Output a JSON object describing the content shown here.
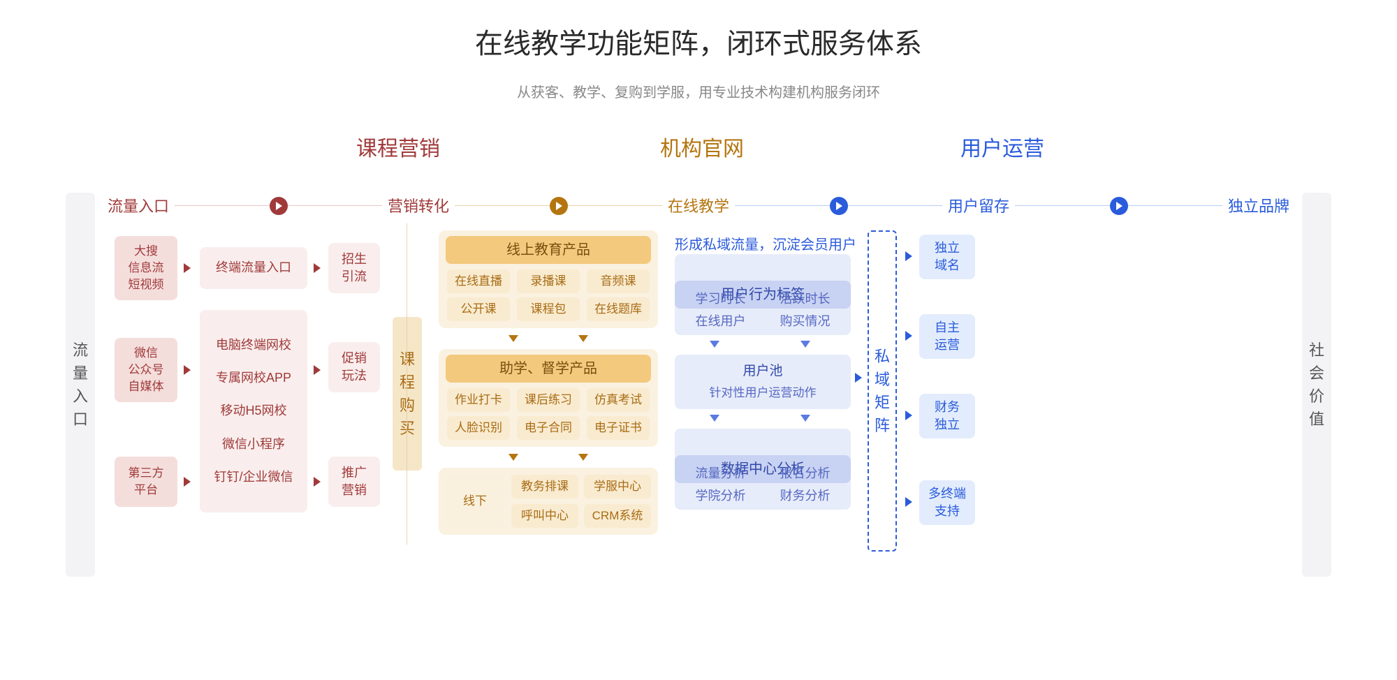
{
  "title": "在线教学功能矩阵，闭环式服务体系",
  "subtitle": "从获客、教学、复购到学服，用专业技术构建机构服务闭环",
  "colors": {
    "red": "#a03a3a",
    "brown": "#b4750f",
    "blue": "#2a5bdc",
    "grey": "#f3f3f5",
    "red_light": "#f9eeed",
    "red_strong": "#f4dedc",
    "brown_header": "#f3c97e",
    "brown_chip": "#f9ebd0",
    "brown_soft": "#faf0de",
    "brown_wrap": "#fbf1e0",
    "blue_header": "#c8d2f2",
    "blue_light": "#e7ecfa",
    "blue_chip": "#e2ecfc"
  },
  "sections": {
    "s1": "课程营销",
    "s2": "机构官网",
    "s3": "用户运营"
  },
  "subheaders": {
    "h1": "流量入口",
    "h2": "营销转化",
    "h3": "在线教学",
    "h4": "用户留存",
    "h5": "独立品牌"
  },
  "pillars": {
    "left": "流量入口",
    "mid": "课程购买",
    "dash": "私域矩阵",
    "right": "社会价值"
  },
  "col1": {
    "a": "大搜\n信息流\n短视频",
    "b": "微信\n公众号\n自媒体",
    "c": "第三方\n平台"
  },
  "col2": {
    "a": "终端流量入口",
    "b1": "电脑终端网校",
    "b2": "专属网校APP",
    "b3": "移动H5网校",
    "b4": "微信小程序",
    "b5": "钉钉/企业微信"
  },
  "col3": {
    "a": "招生\n引流",
    "b": "促销\n玩法",
    "c": "推广\n营销"
  },
  "teach": {
    "top_h": "线上教育产品",
    "top": [
      "在线直播",
      "录播课",
      "音频课",
      "公开课",
      "课程包",
      "在线题库"
    ],
    "mid_h": "助学、督学产品",
    "mid": [
      "作业打卡",
      "课后练习",
      "仿真考试",
      "人脸识别",
      "电子合同",
      "电子证书"
    ],
    "bot_l": "线下",
    "bot": [
      "教务排课",
      "学服中心",
      "呼叫中心",
      "CRM系统"
    ]
  },
  "ops": {
    "note": "形成私域流量，沉淀会员用户",
    "h1": "用户行为标签",
    "g1": [
      "学习时长",
      "活跃时长",
      "在线用户",
      "购买情况"
    ],
    "pool": "用户池",
    "pool_sub": "针对性用户运营动作",
    "h2": "数据中心分析",
    "g2": [
      "流量分析",
      "报名分析",
      "学院分析",
      "财务分析"
    ]
  },
  "brand": {
    "a": "独立\n域名",
    "b": "自主\n运营",
    "c": "财务\n独立",
    "d": "多终端\n支持"
  }
}
